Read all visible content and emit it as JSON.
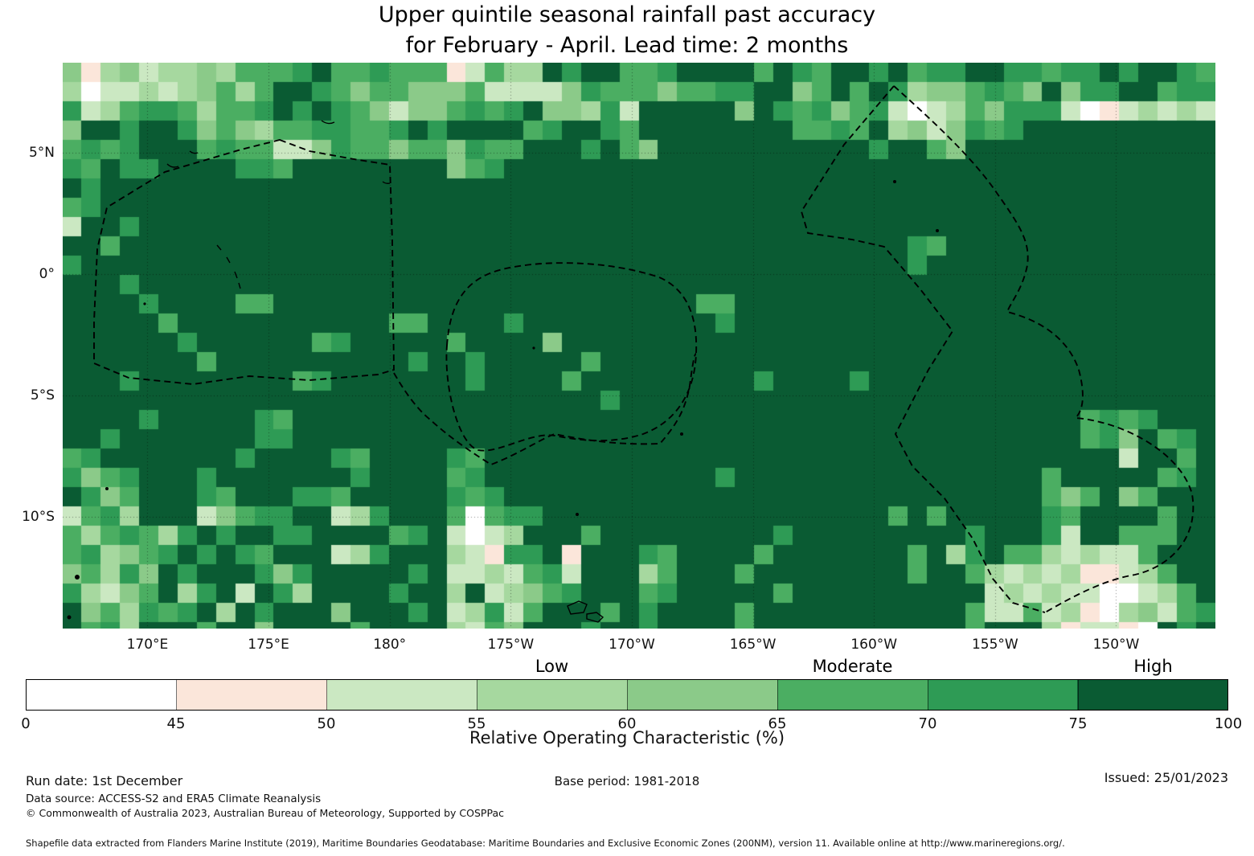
{
  "title": {
    "line1": "Upper quintile seasonal rainfall past accuracy",
    "line2": "for February - April. Lead time: 2 months"
  },
  "chart_data": {
    "type": "heatmap",
    "title": "Upper quintile seasonal rainfall past accuracy for February - April. Lead time: 2 months",
    "xlabel": "",
    "ylabel": "",
    "x_ticks": [
      {
        "lon_deg_east": 170,
        "label": "170°E"
      },
      {
        "lon_deg_east": 175,
        "label": "175°E"
      },
      {
        "lon_deg_east": 180,
        "label": "180°"
      },
      {
        "lon_deg_east": 185,
        "label": "175°W"
      },
      {
        "lon_deg_east": 190,
        "label": "170°W"
      },
      {
        "lon_deg_east": 195,
        "label": "165°W"
      },
      {
        "lon_deg_east": 200,
        "label": "160°W"
      },
      {
        "lon_deg_east": 205,
        "label": "155°W"
      },
      {
        "lon_deg_east": 210,
        "label": "150°W"
      }
    ],
    "y_ticks": [
      {
        "lat": 5,
        "label": "5°N"
      },
      {
        "lat": 0,
        "label": "0°"
      },
      {
        "lat": -5,
        "label": "5°S"
      },
      {
        "lat": -10,
        "label": "10°S"
      }
    ],
    "x_range_deg_east": [
      166.5,
      214.1
    ],
    "y_range_lat": [
      8.7,
      -14.6
    ],
    "grid_lines": true,
    "colorbar": {
      "axis_label": "Relative Operating Characteristic (%)",
      "boundaries": [
        0,
        45,
        50,
        55,
        60,
        65,
        70,
        75,
        100
      ],
      "colors": [
        "#ffffff",
        "#fbe6da",
        "#cbe8c2",
        "#a6d89f",
        "#8bca89",
        "#4bae62",
        "#2e9b55",
        "#0a5b33"
      ],
      "band_labels": [
        "Low",
        "Moderate",
        "High"
      ],
      "band_label_segment_index": [
        3,
        5,
        7
      ]
    },
    "grid": {
      "cols": 60,
      "rows": 30,
      "cell_encoding": "each digit is the ROC% bin index 0-7 for bins 0-45, 45-50, 50-55, 55-60, 60-65, 65-70, 70-75, 75-100",
      "rows_data": [
        "413423343555675565551253376775567777576577675667766566767765",
        "302232345357765455444522224655545566774575763445654746677566",
        "623566535567676542445656744362777774765645620235466620123232",
        "477677645435566556767777567765777777775565734246567777777777",
        "565677756552246554554655777675477777777777677547777777777777",
        "657667777665777777774567777777777777777777777777777777777777",
        "767777777777777777777777777777777777777777777777777777777777",
        "567777777777777777777777777777777777777777777777777777777777",
        "277677777777777777777777777777777777777777777777777777777777",
        "775777777777777777777777777777777777777777776577777777777777",
        "677777777777777777777777777777777777777777776777777777777777",
        "777677777777777777777777777777777777777777777777777777777777",
        "777767777557777777777777777777777557777777777777777777777777",
        "777775777777777775577776777777777767777777777777777777777777",
        "777777677777756777775777747777777777777777777777777777777777",
        "777777757777777777677677777577777777777777777777777777777777",
        "777677777777567777777677775777777777677776777777777777777777",
        "777777777777777777777777777767777777777777777777777777777777",
        "777767777765777777777777777777777777777777777777777775656777",
        "776777777766777777777777777777777777777777777777777775647567",
        "567777777677776577776577777777777777777777777777777777727757",
        "645677767777777677775677777777777767777777777777777577777567",
        "764577765777665777776567777777777777777777777777777545745777",
        "256377724566772367775056677777777777777777757577777657777577",
        "535653676776677775672023777577777777767777777776777627755577",
        "563456767657772367773216671777657777577777775736755323225777",
        "453647677764677777672232562777357775777777775775323231123577",
        "632457367276377776773723456777567777757777777777232322002357",
        "745365673767774777672362577757677775777777777775225231034256",
        "756377757747777577773254777677677775777777777775777312210767"
      ]
    }
  },
  "footer": {
    "run_date": "Run date: 1st December",
    "base_period": "Base period: 1981-2018",
    "issued": "Issued: 25/01/2023",
    "data_source": "Data source: ACCESS-S2 and ERA5 Climate Reanalysis",
    "copyright": "© Commonwealth of Australia 2023, Australian Bureau of Meteorology, Supported by COSPPac",
    "shapefile_note": "Shapefile data extracted from Flanders Marine Institute (2019), Maritime Boundaries Geodatabase: Maritime Boundaries and Exclusive Economic Zones (200NM), version 11. Available online at http://www.marineregions.org/."
  }
}
